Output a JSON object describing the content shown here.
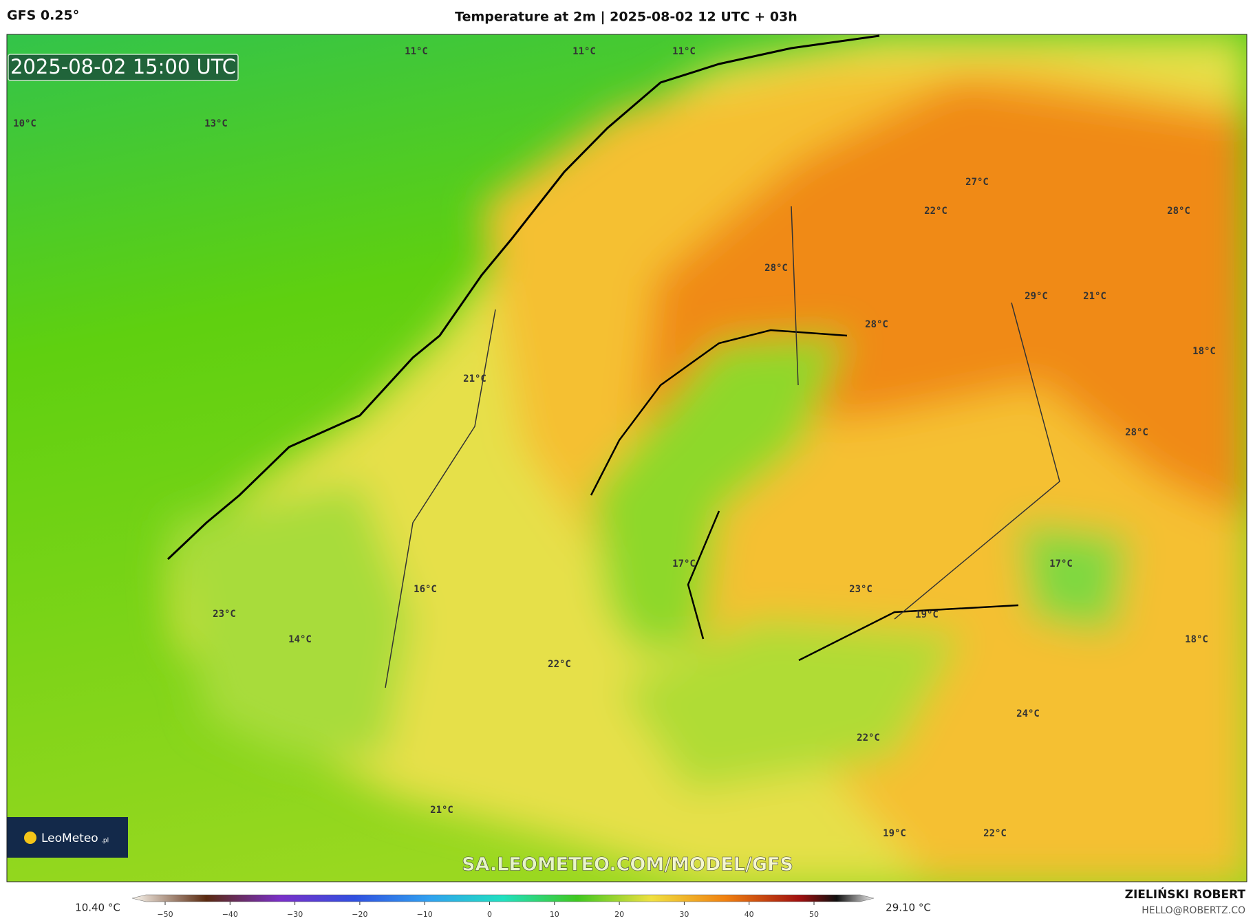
{
  "header": {
    "model": "GFS 0.25°",
    "title": "Temperature at 2m | 2025-08-02 12 UTC + 03h"
  },
  "map": {
    "timestamp": "2025-08-02 15:00 UTC",
    "labels": [
      "11°C",
      "11°C",
      "11°C",
      "10°C",
      "13°C",
      "27°C",
      "22°C",
      "28°C",
      "28°C",
      "29°C",
      "21°C",
      "28°C",
      "18°C",
      "21°C",
      "28°C",
      "17°C",
      "17°C",
      "16°C",
      "23°C",
      "23°C",
      "19°C",
      "14°C",
      "18°C",
      "22°C",
      "24°C",
      "22°C",
      "21°C",
      "19°C",
      "22°C"
    ],
    "logo": "LeoMeteo",
    "logo_suffix": ".pl",
    "watermark": "SA.LEOMETEO.COM/MODEL/GFS"
  },
  "legend": {
    "min": "10.40 °C",
    "max": "29.10 °C",
    "ticks": [
      "−50",
      "−40",
      "−30",
      "−20",
      "−10",
      "0",
      "10",
      "20",
      "30",
      "40",
      "50"
    ]
  },
  "footer": {
    "author": "ZIELIŃSKI ROBERT",
    "contact": "HELLO@ROBERTZ.CO"
  }
}
